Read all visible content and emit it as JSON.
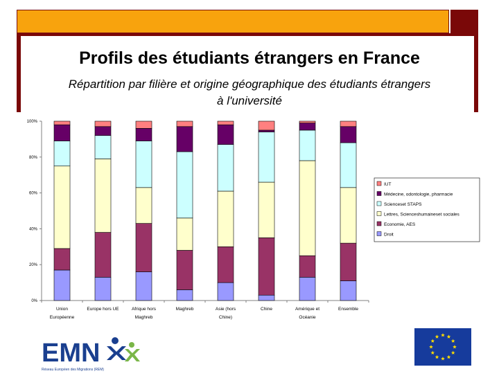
{
  "slide": {
    "title": "Profils des étudiants étrangers en France",
    "subtitle_line1": "Répartition par filière et origine géographique des étudiants étrangers",
    "subtitle_line2": "à l'université",
    "logo_text": "EMN",
    "logo_caption": "Réseau Européen des Migrations (REM)"
  },
  "chart_data": {
    "type": "bar",
    "stacked": true,
    "percent": true,
    "categories": [
      [
        "Union",
        "Européenne"
      ],
      [
        "Europe hors UE"
      ],
      [
        "Afrique hors",
        "Maghreb"
      ],
      [
        "Maghreb"
      ],
      [
        "Asie (hors",
        "Chine)"
      ],
      [
        "Chine"
      ],
      [
        "Amérique et",
        "Océanie"
      ],
      [
        "Ensemble"
      ]
    ],
    "series": [
      {
        "name": "Droit",
        "color": "#9999ff",
        "values": [
          17,
          13,
          16,
          6,
          10,
          3,
          13,
          11
        ]
      },
      {
        "name": "Economie, AES",
        "color": "#993366",
        "values": [
          12,
          25,
          27,
          22,
          20,
          32,
          12,
          21
        ]
      },
      {
        "name": "Lettres, Scienceshumaineset sociales",
        "color": "#ffffcc",
        "values": [
          46,
          41,
          20,
          18,
          31,
          31,
          53,
          31
        ]
      },
      {
        "name": "Scienceset STAPS",
        "color": "#ccffff",
        "values": [
          14,
          13,
          26,
          37,
          26,
          28,
          17,
          25
        ]
      },
      {
        "name": "Médecine, odontologie, pharmacie",
        "color": "#660066",
        "values": [
          9,
          5,
          7,
          14,
          11,
          1,
          4,
          9
        ]
      },
      {
        "name": "IUT",
        "color": "#ff8080",
        "values": [
          2,
          3,
          4,
          3,
          2,
          5,
          1,
          3
        ]
      }
    ],
    "yticks": [
      "0%",
      "20%",
      "40%",
      "60%",
      "80%",
      "100%"
    ],
    "ylim": [
      0,
      100
    ],
    "legend_position": "right"
  }
}
